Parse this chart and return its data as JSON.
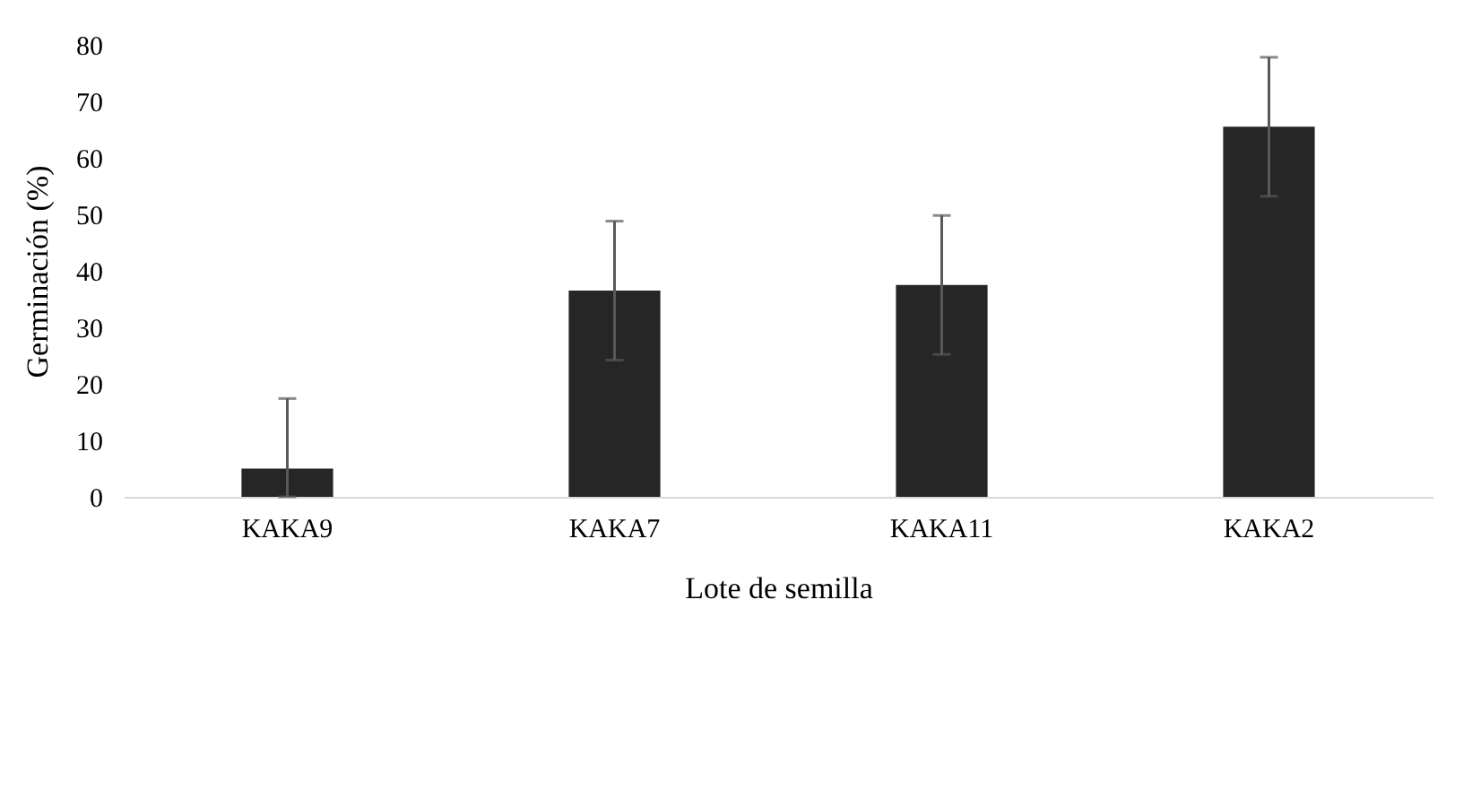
{
  "chart_data": {
    "type": "bar",
    "xlabel": "Lote de semilla",
    "ylabel": "Germinación (%)",
    "categories": [
      "KAKA9",
      "KAKA7",
      "KAKA11",
      "KAKA2"
    ],
    "values": [
      5,
      36.5,
      37.5,
      65.5
    ],
    "errors": [
      [
        0,
        17.4
      ],
      12.3,
      12.3,
      12.3
    ],
    "color": "#262626",
    "ylim": [
      0,
      80
    ],
    "yticks": [
      0,
      10,
      20,
      30,
      40,
      50,
      60,
      70,
      80
    ]
  }
}
